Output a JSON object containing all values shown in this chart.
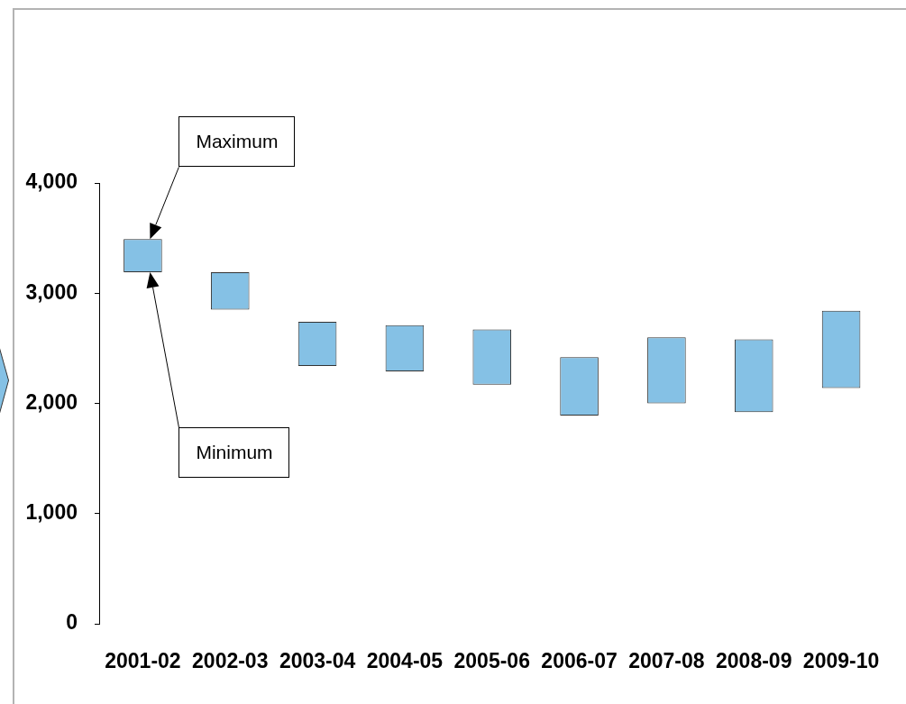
{
  "chart_data": {
    "type": "bar",
    "categories": [
      "2001-02",
      "2002-03",
      "2003-04",
      "2004-05",
      "2005-06",
      "2006-07",
      "2007-08",
      "2008-09",
      "2009-10"
    ],
    "base": [
      3190,
      2850,
      2340,
      2290,
      2170,
      1890,
      2000,
      1920,
      2140
    ],
    "values": [
      300,
      340,
      400,
      420,
      500,
      530,
      600,
      660,
      700
    ],
    "color": "#85c1e5",
    "ylim": [
      0,
      4000
    ],
    "yticks": [
      0,
      {
        "value": 1000,
        "label": "1,000"
      },
      {
        "value": 2000,
        "label": "2,000"
      },
      {
        "value": 3000,
        "label": "3,000"
      },
      {
        "value": 4000,
        "label": "4,000"
      }
    ],
    "annotations": [
      "Maximum",
      "Minimum"
    ]
  }
}
